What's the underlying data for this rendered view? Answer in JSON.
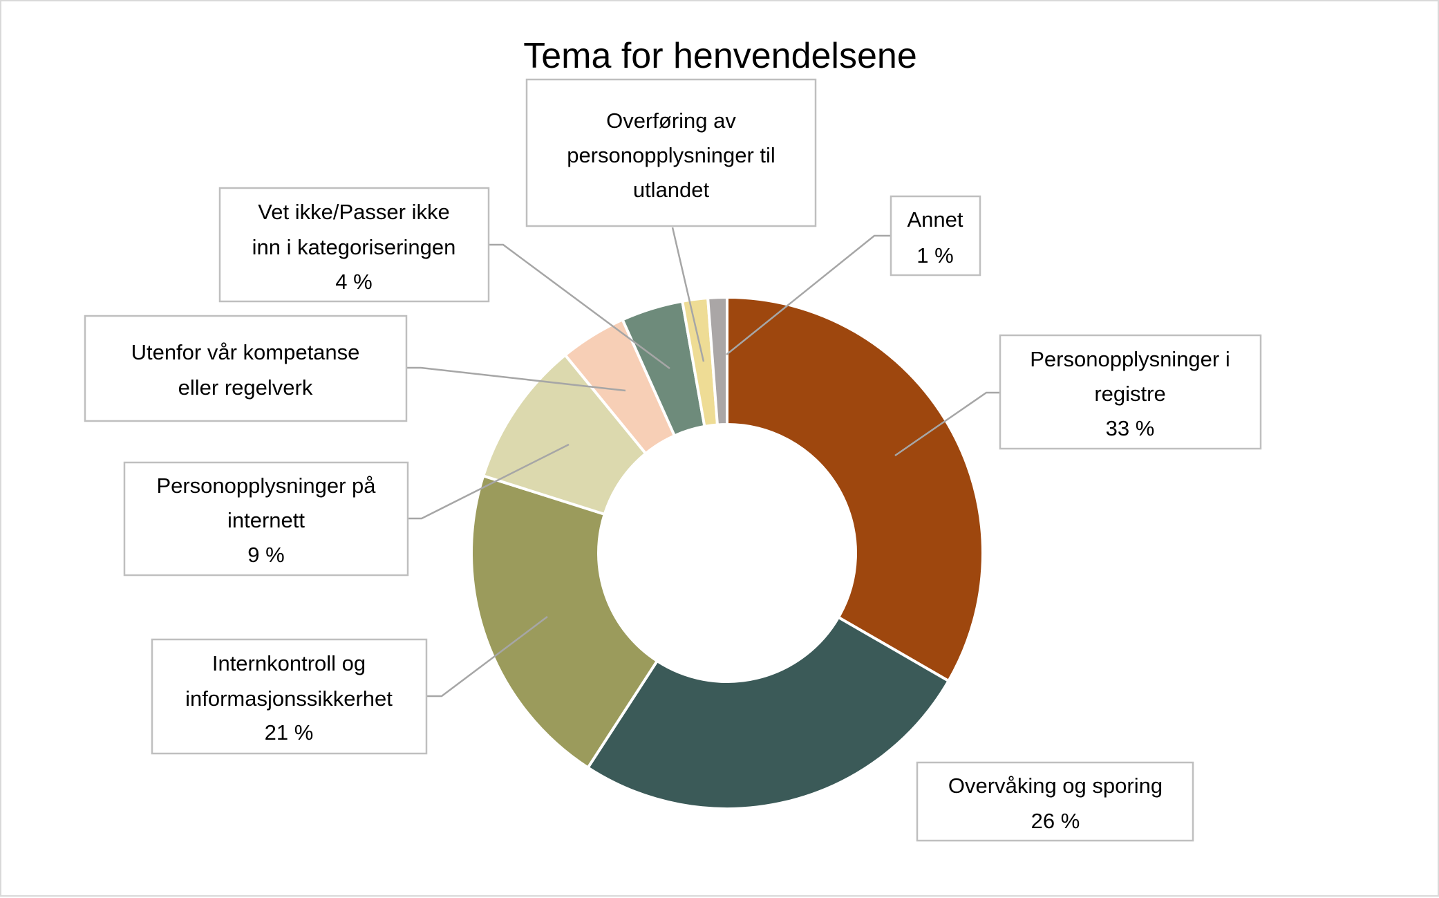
{
  "chart_data": {
    "type": "pie",
    "variant": "doughnut",
    "title": "Tema for henvendelsene",
    "legend": "none",
    "series": [
      {
        "name": "Personopplysninger i registre",
        "value": 33.3,
        "label": "33 %",
        "color": "#9E470E"
      },
      {
        "name": "Overvåking og sporing",
        "value": 25.8,
        "label": "26 %",
        "color": "#3B5A58"
      },
      {
        "name": "Internkontroll og informasjonssikkerhet",
        "value": 20.7,
        "label": "21 %",
        "color": "#9B9B5C"
      },
      {
        "name": "Personopplysninger på internett",
        "value": 9.2,
        "label": "9 %",
        "color": "#DCD9AE"
      },
      {
        "name": "Utenfor vår kompetanse eller regelverk",
        "value": 4.2,
        "label": "",
        "color": "#F7CFB6"
      },
      {
        "name": "Vet ikke/Passer ikke inn i kategoriseringen",
        "value": 3.9,
        "label": "4 %",
        "color": "#6E8B7B"
      },
      {
        "name": "Overføring av personopplysninger til utlandet",
        "value": 1.6,
        "label": "",
        "color": "#EEDC95"
      },
      {
        "name": "Annet",
        "value": 1.2,
        "label": "1 %",
        "color": "#AAA6A6"
      }
    ],
    "label_lines": {
      "registre": [
        "Personopplysninger i",
        "registre",
        "33 %"
      ],
      "overvaking": [
        "Overvåking og sporing",
        "26 %"
      ],
      "intern": [
        "Internkontroll og",
        "informasjonssikkerhet",
        "21 %"
      ],
      "internett": [
        "Personopplysninger på",
        "internett",
        "9 %"
      ],
      "utenfor": [
        "Utenfor vår kompetanse",
        "eller regelverk"
      ],
      "vetikke": [
        "Vet ikke/Passer ikke",
        "inn i kategoriseringen",
        "4 %"
      ],
      "overforing": [
        "Overføring av",
        "personopplysninger til",
        "utlandet"
      ],
      "annet": [
        "Annet",
        "1 %"
      ]
    }
  }
}
